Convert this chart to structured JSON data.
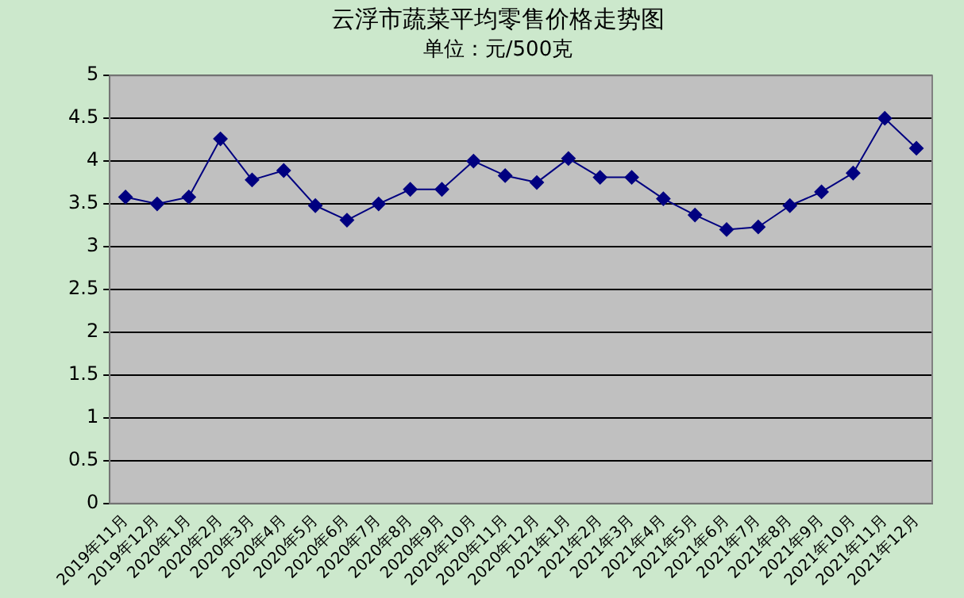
{
  "chart_data": {
    "type": "line",
    "title": "云浮市蔬菜平均零售价格走势图",
    "subtitle": "单位：元/500克",
    "categories": [
      "2019年11月",
      "2019年12月",
      "2020年1月",
      "2020年2月",
      "2020年3月",
      "2020年4月",
      "2020年5月",
      "2020年6月",
      "2020年7月",
      "2020年8月",
      "2020年9月",
      "2020年10月",
      "2020年11月",
      "2020年12月",
      "2021年1月",
      "2021年2月",
      "2021年3月",
      "2021年4月",
      "2021年5月",
      "2021年6月",
      "2021年7月",
      "2021年8月",
      "2021年9月",
      "2021年10月",
      "2021年11月",
      "2021年12月"
    ],
    "series": [
      {
        "color": "#000080",
        "values": [
          3.58,
          3.5,
          3.58,
          4.26,
          3.78,
          3.89,
          3.48,
          3.31,
          3.5,
          3.67,
          3.67,
          4.0,
          3.83,
          3.75,
          4.03,
          3.81,
          3.81,
          3.56,
          3.37,
          3.2,
          3.23,
          3.48,
          3.64,
          3.86,
          4.5,
          4.15
        ]
      }
    ],
    "ylim": [
      0,
      5
    ],
    "yticks": [
      0,
      0.5,
      1,
      1.5,
      2,
      2.5,
      3,
      3.5,
      4,
      4.5,
      5
    ],
    "grid": "y",
    "legend": false,
    "marker": "diamond",
    "line_style": "solid"
  }
}
